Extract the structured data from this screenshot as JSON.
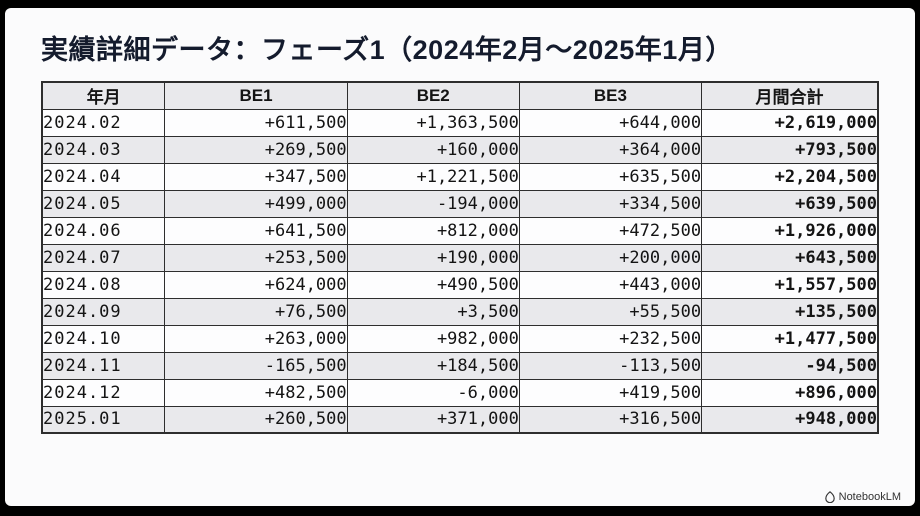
{
  "title": "実績詳細データ：フェーズ1（2024年2月〜2025年1月）",
  "watermark": {
    "label": "NotebookLM"
  },
  "colors": {
    "positive_green": "#00945c",
    "negative_red": "#e25c5c",
    "title_navy": "#141b2d"
  },
  "table": {
    "columns": [
      "年月",
      "BE1",
      "BE2",
      "BE3",
      "月間合計"
    ],
    "rows": [
      {
        "cells": [
          "2024.02",
          "+611,500",
          "+1,363,500",
          "+644,000",
          "+2,619,000"
        ]
      },
      {
        "cells": [
          "2024.03",
          "+269,500",
          "+160,000",
          "+364,000",
          "+793,500"
        ]
      },
      {
        "cells": [
          "2024.04",
          "+347,500",
          "+1,221,500",
          "+635,500",
          "+2,204,500"
        ]
      },
      {
        "cells": [
          "2024.05",
          "+499,000",
          "-194,000",
          "+334,500",
          "+639,500"
        ]
      },
      {
        "cells": [
          "2024.06",
          "+641,500",
          "+812,000",
          "+472,500",
          "+1,926,000"
        ]
      },
      {
        "cells": [
          "2024.07",
          "+253,500",
          "+190,000",
          "+200,000",
          "+643,500"
        ]
      },
      {
        "cells": [
          "2024.08",
          "+624,000",
          "+490,500",
          "+443,000",
          "+1,557,500"
        ]
      },
      {
        "cells": [
          "2024.09",
          "+76,500",
          "+3,500",
          "+55,500",
          "+135,500"
        ]
      },
      {
        "cells": [
          "2024.10",
          "+263,000",
          "+982,000",
          "+232,500",
          "+1,477,500"
        ]
      },
      {
        "cells": [
          "2024.11",
          "-165,500",
          "+184,500",
          "-113,500",
          "-94,500"
        ]
      },
      {
        "cells": [
          "2024.12",
          "+482,500",
          "-6,000",
          "+419,500",
          "+896,000"
        ]
      },
      {
        "cells": [
          "2025.01",
          "+260,500",
          "+371,000",
          "+316,500",
          "+948,000"
        ]
      }
    ]
  }
}
